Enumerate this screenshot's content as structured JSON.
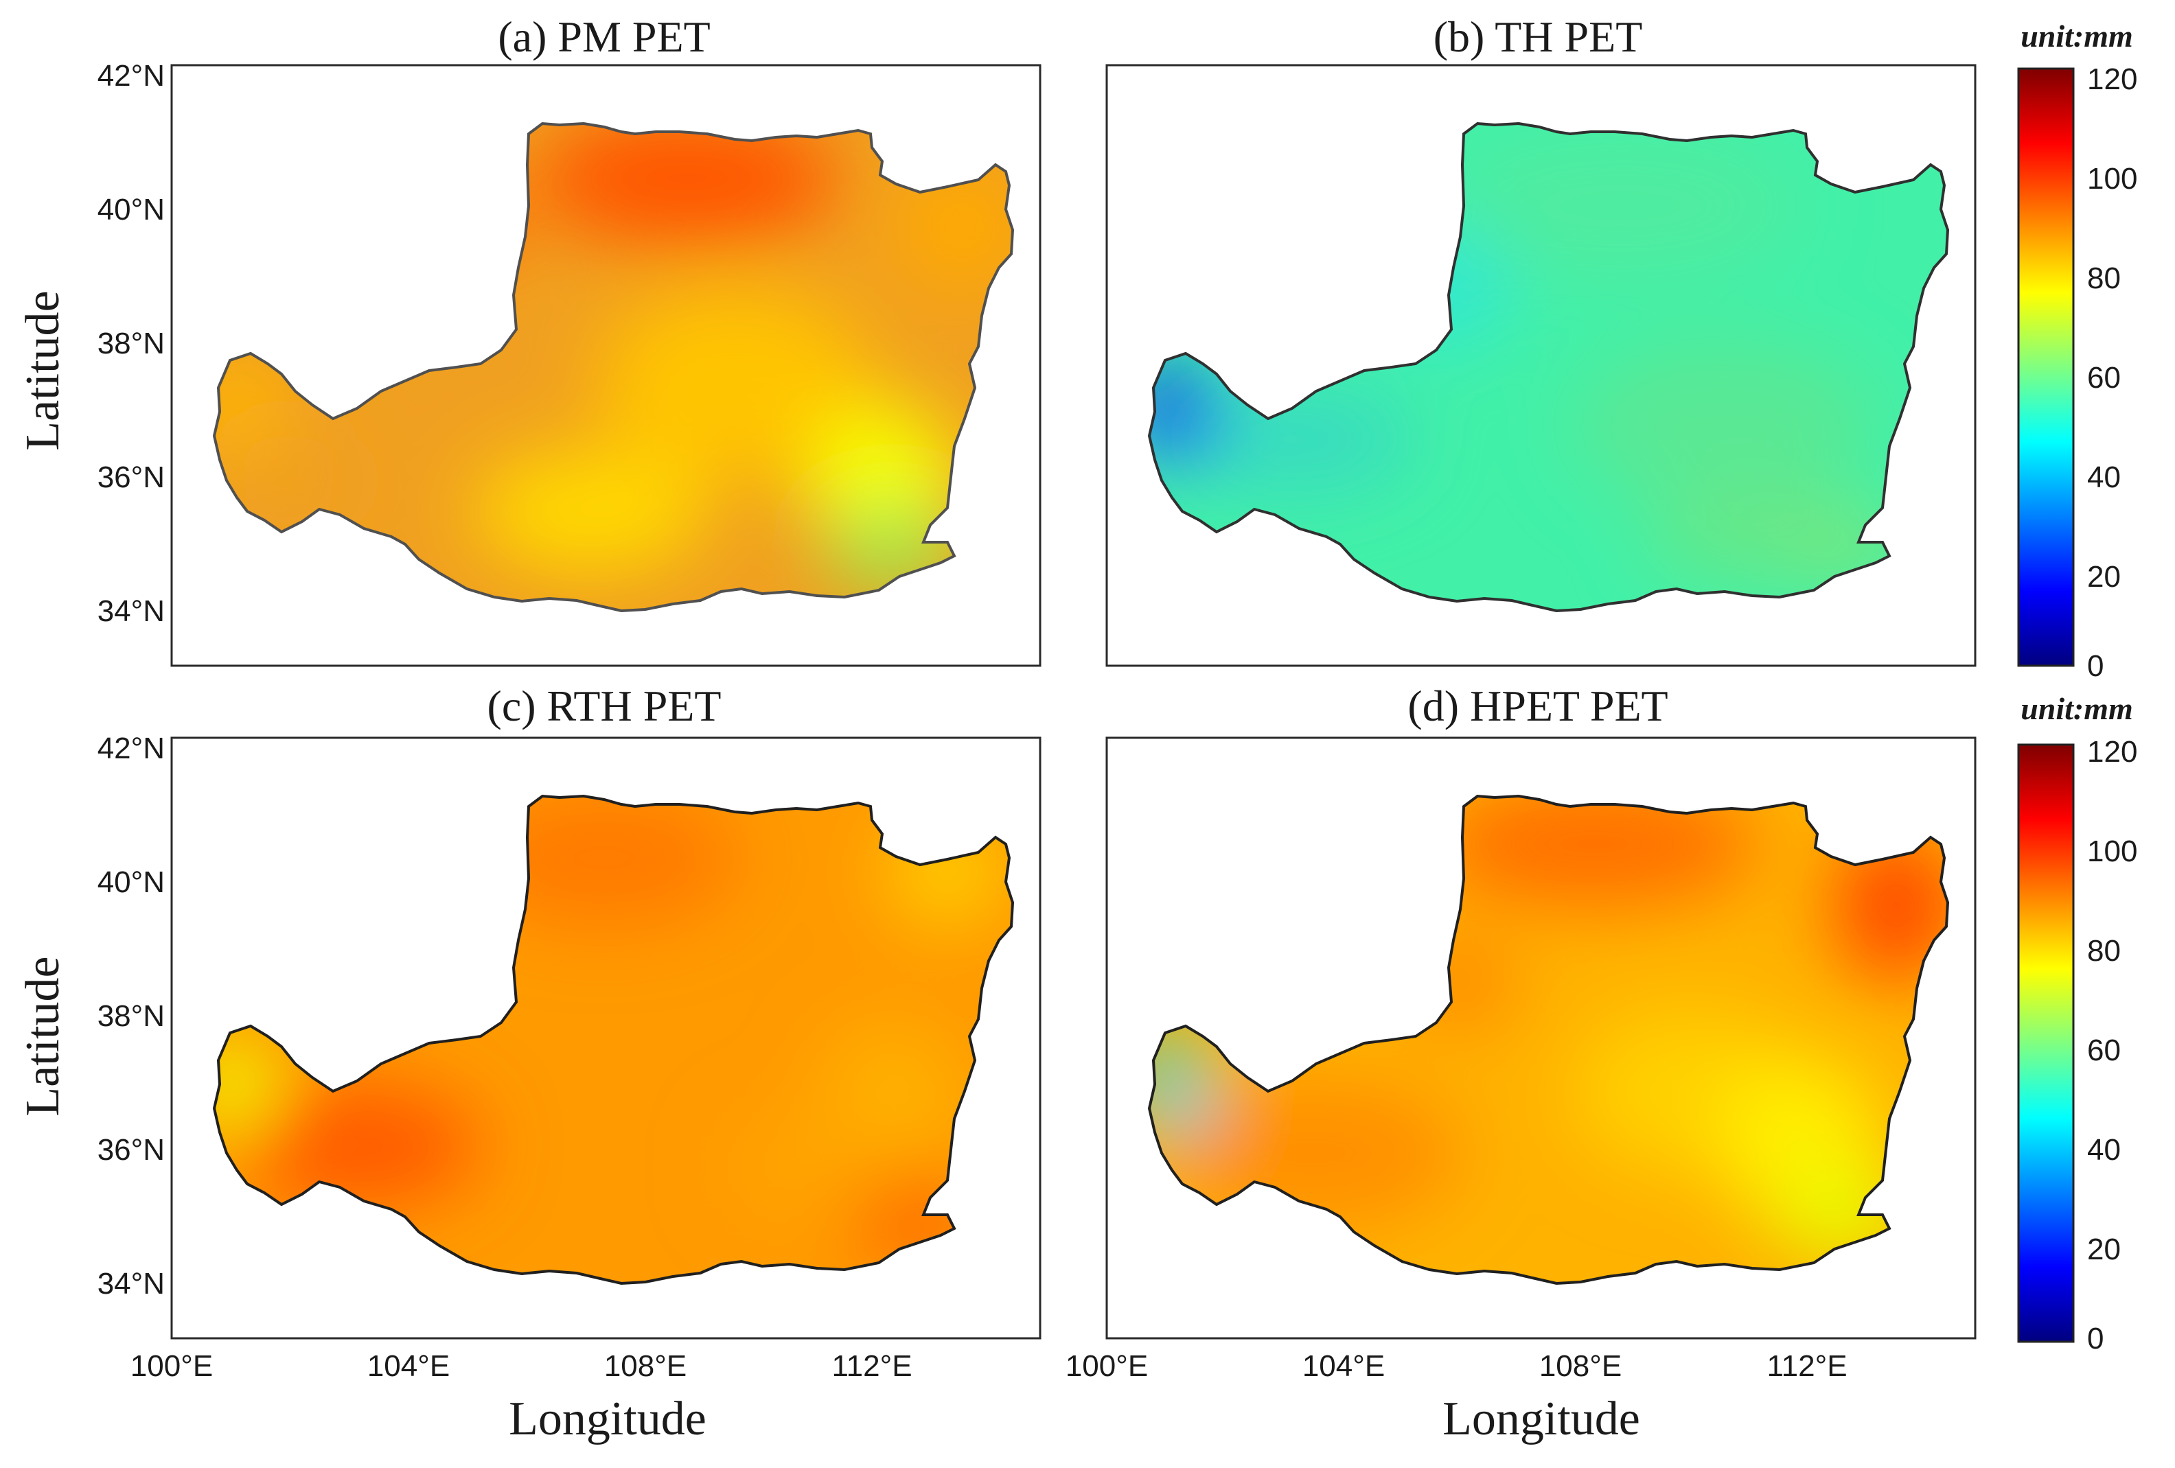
{
  "figure": {
    "panels": [
      {
        "id": "a",
        "title": "(a) PM PET",
        "colors": [
          "#f0a020",
          "#ff6a00",
          "#ff5400",
          "#ffaa00",
          "#ffc400",
          "#ffd800",
          "#f6ff00",
          "#98e850",
          "#ffb800"
        ]
      },
      {
        "id": "b",
        "title": "(b) TH PET",
        "colors": [
          "#42f0a8",
          "#50eca0",
          "#5ae894",
          "#66e888",
          "#7ae67a",
          "#38dcc0",
          "#1a70ff",
          "#0a3ad8",
          "#30e8d0"
        ]
      },
      {
        "id": "c",
        "title": "(c) RTH PET",
        "colors": [
          "#ff9a00",
          "#ff7a00",
          "#ffb000",
          "#ff6400",
          "#ffa400",
          "#ff5a00",
          "#ffcc00",
          "#f0ff00",
          "#8ef060"
        ]
      },
      {
        "id": "d",
        "title": "(d) HPET PET",
        "colors": [
          "#ffb200",
          "#ff6e00",
          "#ff4a00",
          "#ff9000",
          "#ffd000",
          "#ffee00",
          "#e6ff00",
          "#28d8f0",
          "#ff8c00"
        ]
      }
    ],
    "colorbars": [
      {
        "unit": "unit:mm",
        "ticks": [
          "120",
          "100",
          "80",
          "60",
          "40",
          "20",
          "0"
        ]
      },
      {
        "unit": "unit:mm",
        "ticks": [
          "120",
          "100",
          "80",
          "60",
          "40",
          "20",
          "0"
        ]
      }
    ],
    "lat_ticks": [
      "42°N",
      "40°N",
      "38°N",
      "36°N",
      "34°N"
    ],
    "lon_ticks": [
      "100°E",
      "104°E",
      "108°E",
      "112°E"
    ],
    "ylabel": "Latitude",
    "xlabel": "Longitude",
    "colormap": [
      "#00007f",
      "#0000ff",
      "#0080ff",
      "#00ffff",
      "#80ff80",
      "#ffff00",
      "#ff8000",
      "#ff0000",
      "#7f0000"
    ]
  }
}
